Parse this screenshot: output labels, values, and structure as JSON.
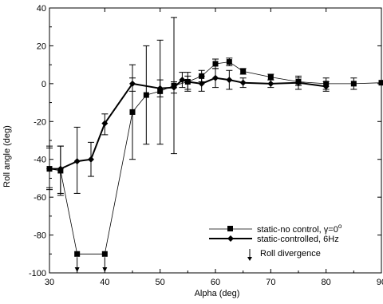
{
  "chart_data": {
    "type": "line",
    "title": "",
    "xlabel": "Alpha (deg)",
    "ylabel": "Roll angle (deg)",
    "xlim": [
      30,
      90
    ],
    "ylim": [
      -100,
      40
    ],
    "x_ticks": [
      30,
      40,
      50,
      60,
      70,
      80,
      90
    ],
    "y_ticks": [
      -100,
      -80,
      -60,
      -40,
      -20,
      0,
      20,
      40
    ],
    "grid": false,
    "legend_position": "lower-right",
    "legend_gamma_symbol": "γ",
    "series": [
      {
        "name": "static-no control, γ=0°",
        "legend_text": "static-no control, ",
        "legend_suffix": "=0",
        "legend_superscript": "o",
        "marker": "square",
        "line_width": 0.8,
        "points": [
          {
            "x": 30,
            "y": -45,
            "lo": -56,
            "hi": -34
          },
          {
            "x": 32,
            "y": -46,
            "lo": -59,
            "hi": -33
          },
          {
            "x": 35,
            "y": -90
          },
          {
            "x": 40,
            "y": -90
          },
          {
            "x": 45,
            "y": -15,
            "lo": -40,
            "hi": 10
          },
          {
            "x": 47.5,
            "y": -6,
            "lo": -32,
            "hi": 20
          },
          {
            "x": 50,
            "y": -4,
            "lo": -32,
            "hi": 23
          },
          {
            "x": 52.5,
            "y": -1,
            "lo": -37,
            "hi": 35
          },
          {
            "x": 55,
            "y": 1,
            "lo": -3,
            "hi": 4
          },
          {
            "x": 57.5,
            "y": 4,
            "lo": 1,
            "hi": 7
          },
          {
            "x": 60,
            "y": 10.5,
            "lo": 8,
            "hi": 13
          },
          {
            "x": 62.5,
            "y": 11.5,
            "lo": 9.5,
            "hi": 13.5
          },
          {
            "x": 65,
            "y": 6.5,
            "lo": 5,
            "hi": 8
          },
          {
            "x": 70,
            "y": 3.5,
            "lo": 2,
            "hi": 5
          },
          {
            "x": 75,
            "y": 1,
            "lo": -1,
            "hi": 3
          },
          {
            "x": 80,
            "y": 0,
            "lo": -3,
            "hi": 3
          },
          {
            "x": 85,
            "y": 0,
            "lo": -3,
            "hi": 3
          },
          {
            "x": 90,
            "y": 0.5
          }
        ]
      },
      {
        "name": "static-controlled, 6Hz",
        "legend_text": "static-controlled, 6Hz",
        "marker": "diamond",
        "line_width": 2,
        "points": [
          {
            "x": 30,
            "y": -45,
            "lo": -55,
            "hi": -33
          },
          {
            "x": 32,
            "y": -45,
            "lo": -58,
            "hi": -33
          },
          {
            "x": 35,
            "y": -41,
            "lo": -58,
            "hi": -23
          },
          {
            "x": 37.5,
            "y": -40,
            "lo": -49,
            "hi": -31
          },
          {
            "x": 40,
            "y": -21,
            "lo": -27,
            "hi": -16
          },
          {
            "x": 45,
            "y": 0,
            "lo": -4,
            "hi": 3
          },
          {
            "x": 50,
            "y": -2.5,
            "lo": -7,
            "hi": 2
          },
          {
            "x": 52.5,
            "y": -2,
            "lo": -5,
            "hi": 1
          },
          {
            "x": 54,
            "y": 2,
            "lo": -2,
            "hi": 6
          },
          {
            "x": 55,
            "y": 1,
            "lo": -4,
            "hi": 6
          },
          {
            "x": 57.5,
            "y": 0,
            "lo": -4,
            "hi": 4
          },
          {
            "x": 60,
            "y": 3,
            "lo": -2,
            "hi": 8
          },
          {
            "x": 62.5,
            "y": 2,
            "lo": -3,
            "hi": 7
          },
          {
            "x": 65,
            "y": 0.5,
            "lo": -2,
            "hi": 3
          },
          {
            "x": 70,
            "y": 0,
            "lo": -2,
            "hi": 2
          },
          {
            "x": 75,
            "y": 0.5,
            "lo": -3,
            "hi": 4
          },
          {
            "x": 80,
            "y": -1.5,
            "lo": -4,
            "hi": 1
          }
        ]
      }
    ],
    "divergence_arrows": [
      {
        "x": 35,
        "y_from": -90,
        "y_to": -100
      },
      {
        "x": 40,
        "y_from": -90,
        "y_to": -100
      }
    ],
    "divergence_legend": "Roll divergence"
  }
}
